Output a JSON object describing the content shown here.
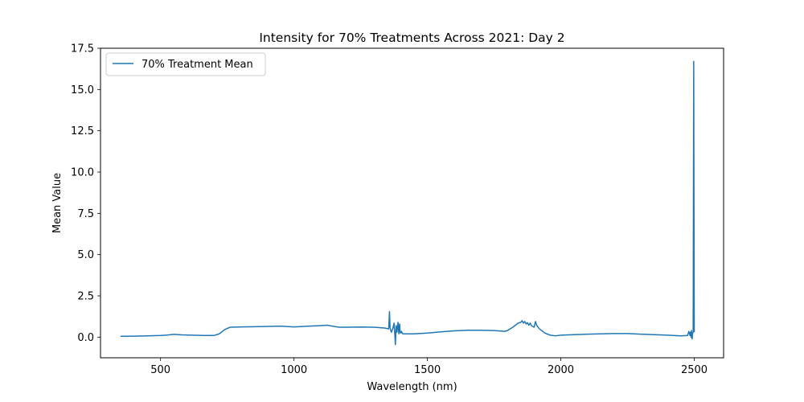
{
  "chart_data": {
    "type": "line",
    "title": "Intensity for 70% Treatments Across 2021: Day 2",
    "xlabel": "Wavelength (nm)",
    "ylabel": "Mean Value",
    "xlim": [
      275,
      2610
    ],
    "ylim": [
      -1.25,
      17.5
    ],
    "xticks": [
      500,
      1000,
      1500,
      2000,
      2500
    ],
    "xtick_labels": [
      "500",
      "1000",
      "1500",
      "2000",
      "2500"
    ],
    "yticks": [
      0.0,
      2.5,
      5.0,
      7.5,
      10.0,
      12.5,
      15.0,
      17.5
    ],
    "ytick_labels": [
      "0.0",
      "2.5",
      "5.0",
      "7.5",
      "10.0",
      "12.5",
      "15.0",
      "17.5"
    ],
    "grid": false,
    "legend_position": "top-left",
    "series": [
      {
        "name": "70% Treatment Mean",
        "color": "#1f77b4",
        "x": [
          350,
          400,
          450,
          500,
          520,
          550,
          580,
          620,
          660,
          700,
          720,
          740,
          760,
          800,
          850,
          900,
          950,
          1000,
          1050,
          1100,
          1125,
          1150,
          1170,
          1200,
          1250,
          1300,
          1340,
          1355,
          1358,
          1360,
          1362,
          1365,
          1370,
          1375,
          1378,
          1380,
          1383,
          1386,
          1390,
          1393,
          1396,
          1398,
          1400,
          1403,
          1406,
          1410,
          1420,
          1450,
          1500,
          1550,
          1600,
          1650,
          1700,
          1750,
          1790,
          1800,
          1820,
          1840,
          1850,
          1855,
          1860,
          1865,
          1870,
          1875,
          1880,
          1885,
          1890,
          1895,
          1900,
          1905,
          1910,
          1920,
          1940,
          1960,
          1980,
          2000,
          2050,
          2100,
          2150,
          2200,
          2250,
          2300,
          2350,
          2400,
          2450,
          2475,
          2480,
          2484,
          2486,
          2488,
          2490,
          2492,
          2494,
          2496,
          2498,
          2500
        ],
        "y": [
          0.05,
          0.06,
          0.08,
          0.1,
          0.12,
          0.17,
          0.14,
          0.12,
          0.1,
          0.1,
          0.2,
          0.45,
          0.6,
          0.62,
          0.63,
          0.65,
          0.67,
          0.62,
          0.66,
          0.7,
          0.72,
          0.65,
          0.6,
          0.6,
          0.61,
          0.6,
          0.55,
          0.5,
          1.55,
          0.6,
          0.45,
          0.3,
          0.5,
          0.85,
          0.2,
          -0.45,
          0.7,
          0.3,
          0.9,
          0.2,
          0.8,
          0.3,
          0.25,
          0.35,
          0.22,
          0.2,
          0.2,
          0.2,
          0.25,
          0.32,
          0.38,
          0.42,
          0.42,
          0.4,
          0.35,
          0.4,
          0.6,
          0.85,
          0.9,
          1.0,
          0.85,
          0.95,
          0.8,
          0.88,
          0.72,
          0.85,
          0.7,
          0.65,
          0.6,
          0.95,
          0.7,
          0.5,
          0.25,
          0.12,
          0.08,
          0.12,
          0.15,
          0.18,
          0.2,
          0.22,
          0.22,
          0.18,
          0.15,
          0.12,
          0.08,
          0.1,
          0.35,
          0.1,
          0.3,
          0.0,
          0.4,
          -0.1,
          0.25,
          0.3,
          16.7,
          0.3
        ]
      }
    ]
  }
}
